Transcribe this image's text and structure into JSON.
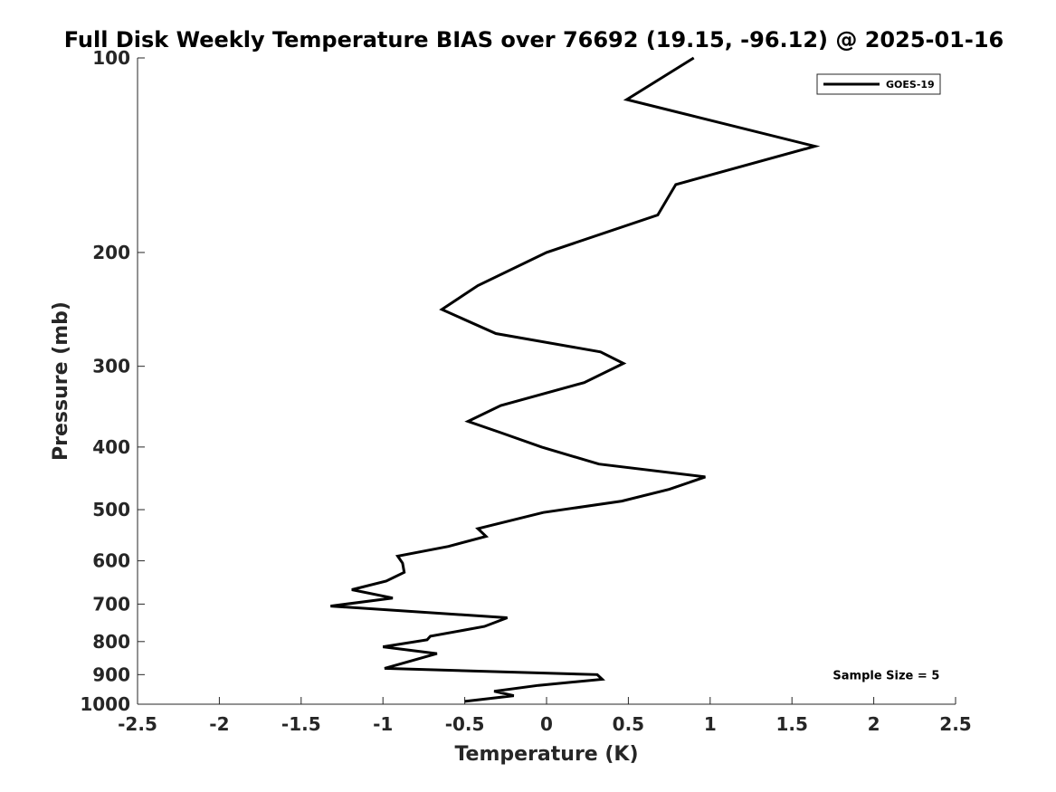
{
  "chart_data": {
    "type": "line",
    "title": "Full Disk Weekly Temperature BIAS over 76692 (19.15, -96.12) @ 2025-01-16",
    "xlabel": "Temperature (K)",
    "ylabel": "Pressure (mb)",
    "xlim": [
      -2.5,
      2.5
    ],
    "ylim": [
      1000,
      100
    ],
    "yscale": "log",
    "xticks": [
      -2.5,
      -2,
      -1.5,
      -1,
      -0.5,
      0,
      0.5,
      1,
      1.5,
      2,
      2.5
    ],
    "xtick_labels": [
      "-2.5",
      "-2",
      "-1.5",
      "-1",
      "-0.5",
      "0",
      "0.5",
      "1",
      "1.5",
      "2",
      "2.5"
    ],
    "yticks": [
      100,
      200,
      300,
      400,
      500,
      600,
      700,
      800,
      900,
      1000
    ],
    "ytick_labels": [
      "100",
      "200",
      "300",
      "400",
      "500",
      "600",
      "700",
      "800",
      "900",
      "1000"
    ],
    "grid": false,
    "legend_position": "top-right",
    "series": [
      {
        "name": "GOES-19",
        "color": "#000000",
        "x": [
          0.9,
          0.49,
          1.64,
          0.79,
          0.68,
          0.0,
          -0.42,
          -0.64,
          -0.31,
          0.33,
          0.47,
          0.23,
          -0.28,
          -0.48,
          -0.28,
          -0.03,
          0.32,
          0.97,
          0.75,
          0.46,
          -0.02,
          -0.42,
          -0.37,
          -0.6,
          -0.91,
          -0.88,
          -0.87,
          -0.98,
          -1.19,
          -0.94,
          -1.32,
          -0.24,
          -0.38,
          -0.71,
          -0.73,
          -1.0,
          -0.67,
          -0.99,
          0.31,
          0.34,
          -0.05,
          -0.32,
          -0.2,
          -0.5
        ],
        "y": [
          100,
          116,
          137,
          157,
          175,
          200,
          225,
          245,
          267,
          285,
          297,
          318,
          345,
          365,
          380,
          400,
          425,
          445,
          465,
          485,
          505,
          535,
          550,
          570,
          590,
          605,
          625,
          645,
          665,
          685,
          705,
          735,
          758,
          785,
          795,
          815,
          835,
          880,
          900,
          915,
          935,
          955,
          970,
          990
        ]
      }
    ],
    "annotations": [
      {
        "text": "Sample Size = 5",
        "x": 1.75,
        "y": 900
      }
    ]
  }
}
